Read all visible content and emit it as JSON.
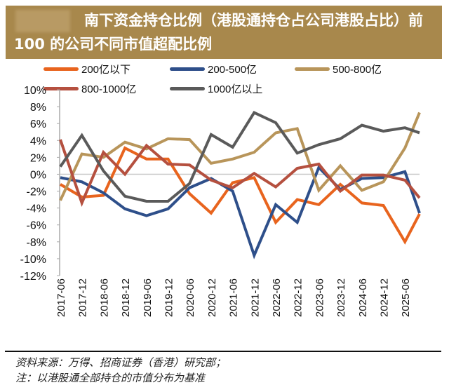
{
  "header": {
    "title": "南下资金持仓比例（港股通持仓占公司港股占比）前 100 的公司不同市值超配比例"
  },
  "chart_data": {
    "type": "line",
    "title": "南下资金持仓比例（港股通持仓占公司港股占比）前 100 的公司不同市值超配比例",
    "xlabel": "",
    "ylabel": "",
    "categories": [
      "2017-06",
      "2017-12",
      "2018-06",
      "2018-12",
      "2019-06",
      "2019-12",
      "2020-06",
      "2020-12",
      "2021-06",
      "2021-12",
      "2022-06",
      "2022-12",
      "2023-06",
      "2023-12",
      "2024-06",
      "2024-12",
      "2025-06",
      ""
    ],
    "ylim": [
      -12,
      10
    ],
    "yticks": [
      "10%",
      "8%",
      "6%",
      "4%",
      "2%",
      "0%",
      "-2%",
      "-4%",
      "-6%",
      "-8%",
      "-10%",
      "-12%"
    ],
    "legend_position": "top",
    "grid": false,
    "series": [
      {
        "name": "200亿以下",
        "color": "#e8641e",
        "values": [
          -1.2,
          -2.7,
          -2.5,
          3.1,
          1.8,
          1.8,
          -2.3,
          -4.6,
          -1.0,
          -0.4,
          -5.7,
          -3.0,
          -3.6,
          -1.2,
          -3.4,
          -3.7,
          -8.0,
          -4.7
        ]
      },
      {
        "name": "200-500亿",
        "color": "#2e4f8a",
        "values": [
          -0.4,
          -0.9,
          -2.2,
          -4.1,
          -4.9,
          -4.1,
          -1.6,
          -0.5,
          -2.0,
          -9.6,
          -3.6,
          -5.7,
          0.8,
          -1.8,
          -0.5,
          -0.4,
          0.3,
          -4.6
        ]
      },
      {
        "name": "500-800亿",
        "color": "#b8955a",
        "values": [
          -3.1,
          2.4,
          2.0,
          3.8,
          3.0,
          4.2,
          4.1,
          1.3,
          1.8,
          2.6,
          4.9,
          5.4,
          -1.9,
          1.0,
          -1.9,
          -0.9,
          3.1,
          7.3
        ]
      },
      {
        "name": "800-1000亿",
        "color": "#b5503f",
        "values": [
          4.1,
          -3.4,
          2.6,
          0.0,
          3.4,
          1.2,
          1.1,
          -0.7,
          -1.6,
          0.1,
          -1.5,
          0.7,
          1.2,
          -2.0,
          -0.1,
          -0.1,
          -0.7,
          -2.8
        ]
      },
      {
        "name": "1000亿以上",
        "color": "#5a5a5a",
        "values": [
          0.9,
          4.6,
          0.4,
          -2.6,
          -3.2,
          -3.2,
          -1.1,
          4.7,
          3.2,
          7.3,
          6.1,
          2.5,
          3.5,
          4.2,
          5.8,
          5.1,
          5.5,
          4.9
        ]
      }
    ]
  },
  "footer": {
    "source": "资料来源：万得、招商证券（香港）研究部；",
    "note": "注：以港股通全部持仓的市值分布为基准"
  }
}
